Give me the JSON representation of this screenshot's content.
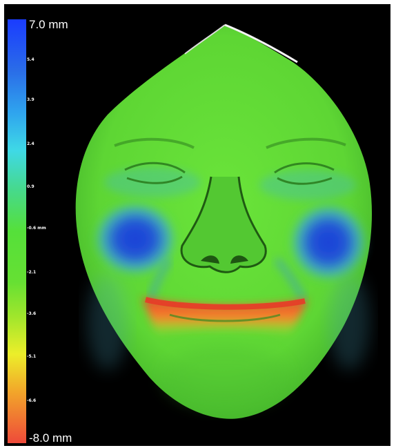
{
  "colorbar": {
    "max_label": "7.0 mm",
    "min_label": "-8.0 mm",
    "ticks": [
      "5.4",
      "3.9",
      "2.4",
      "0.9",
      "-0.6 mm",
      "-2.1",
      "-3.6",
      "-5.1",
      "-6.6"
    ],
    "colors": {
      "top": "#1a3cff",
      "middle": "#55e03a",
      "bottom": "#ee4a3a"
    }
  },
  "image": {
    "subject": "3D facial surface deviation color map",
    "background_color": "#000000",
    "surface_color": "#5fd836",
    "positive_deviation_color": "#1e46e0",
    "negative_deviation_color": "#ee3a2a"
  }
}
